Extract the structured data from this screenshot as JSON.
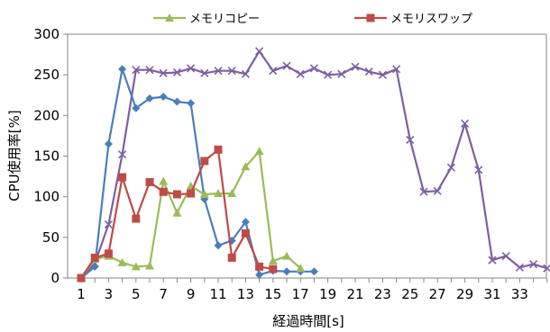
{
  "chart_data": {
    "type": "line",
    "title": "",
    "xlabel": "経過時間[s]",
    "ylabel": "CPU使用率[%]",
    "ylim": [
      0,
      300
    ],
    "yticks": [
      0,
      50,
      100,
      150,
      200,
      250,
      300
    ],
    "xticks": [
      1,
      3,
      5,
      7,
      9,
      11,
      13,
      15,
      17,
      19,
      21,
      23,
      25,
      27,
      29,
      31,
      33
    ],
    "xlim": [
      1,
      35
    ],
    "grid": false,
    "legend_position": "top",
    "series": [
      {
        "name": "",
        "color": "#4a7ebb",
        "marker": "diamond",
        "x": [
          1,
          2,
          3,
          4,
          5,
          6,
          7,
          8,
          9,
          10,
          11,
          12,
          13,
          14,
          15,
          16,
          17,
          18
        ],
        "values": [
          0,
          14,
          165,
          257,
          209,
          221,
          223,
          217,
          215,
          97,
          40,
          46,
          69,
          4,
          9,
          8,
          8,
          8
        ]
      },
      {
        "name": "メモリコピー",
        "color": "#9bbb59",
        "marker": "triangle",
        "x": [
          1,
          2,
          3,
          4,
          5,
          6,
          7,
          8,
          9,
          10,
          11,
          12,
          13,
          14,
          15,
          16,
          17
        ],
        "values": [
          0,
          23,
          27,
          19,
          14,
          15,
          119,
          80,
          113,
          103,
          104,
          104,
          137,
          156,
          21,
          27,
          12
        ]
      },
      {
        "name": "メモリスワップ",
        "color": "#be4b48",
        "marker": "square",
        "x": [
          1,
          2,
          3,
          4,
          5,
          6,
          7,
          8,
          9,
          10,
          11,
          12,
          13,
          14,
          15
        ],
        "values": [
          0,
          25,
          30,
          124,
          73,
          118,
          106,
          103,
          104,
          144,
          158,
          25,
          55,
          14,
          11
        ]
      },
      {
        "name": "",
        "color": "#7d5fa0",
        "marker": "x",
        "x": [
          1,
          2,
          3,
          4,
          5,
          6,
          7,
          8,
          9,
          10,
          11,
          12,
          13,
          14,
          15,
          16,
          17,
          18,
          19,
          20,
          21,
          22,
          23,
          24,
          25,
          26,
          27,
          28,
          29,
          30,
          31,
          32,
          33,
          34,
          35
        ],
        "values": [
          0,
          18,
          66,
          152,
          256,
          256,
          252,
          253,
          258,
          252,
          255,
          255,
          251,
          279,
          255,
          261,
          251,
          258,
          250,
          251,
          260,
          254,
          250,
          257,
          170,
          106,
          107,
          136,
          190,
          133,
          22,
          27,
          13,
          17,
          12
        ]
      }
    ],
    "legend": [
      {
        "label": "メモリコピー",
        "series_index": 1
      },
      {
        "label": "メモリスワップ",
        "series_index": 2
      }
    ]
  }
}
